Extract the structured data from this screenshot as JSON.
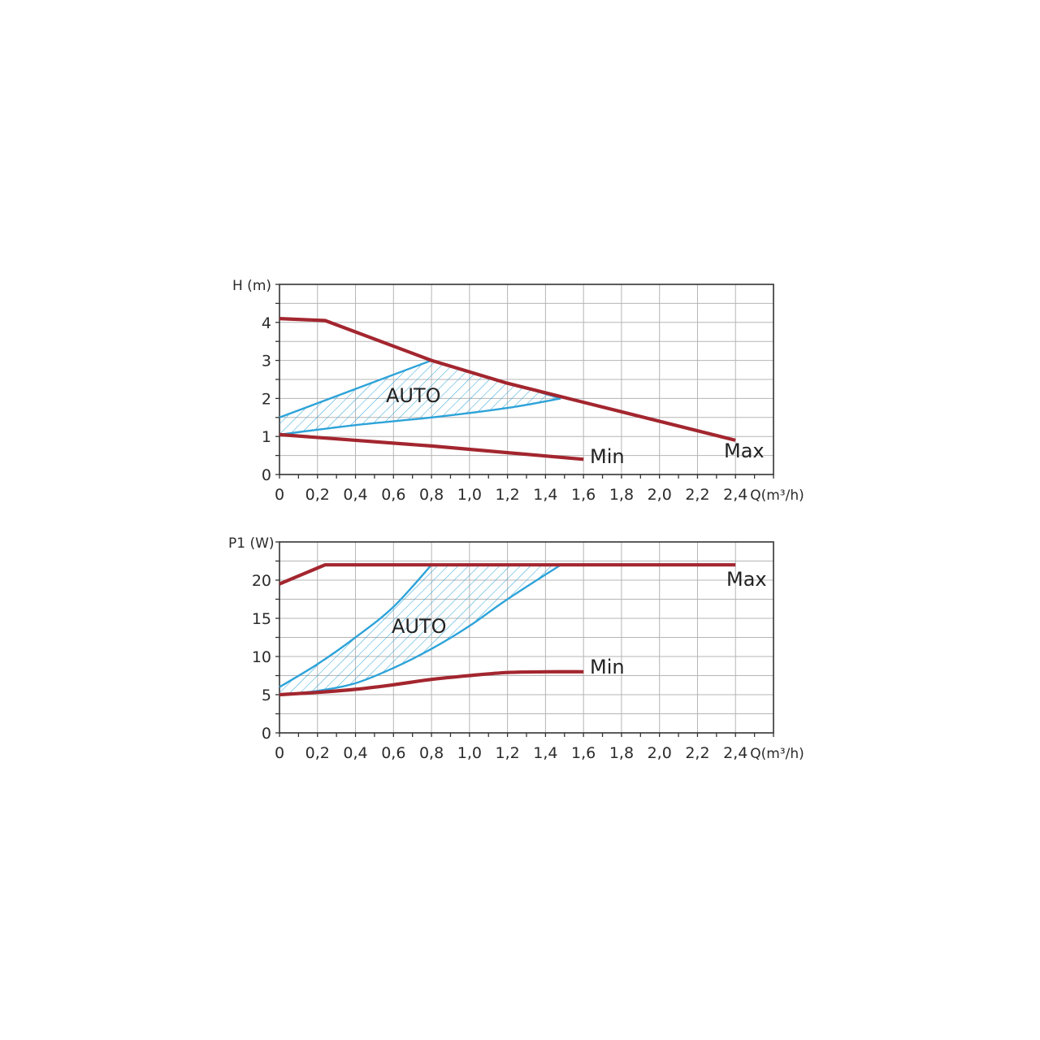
{
  "colors": {
    "max_min_curves": "#a3262f",
    "auto_boundaries": "#2ea3d9",
    "grid": "#b5b5b5",
    "frame": "#333333"
  },
  "chart_data": [
    {
      "type": "line",
      "ylabel": "H (m)",
      "xlabel": "Q(m³/h)",
      "xlim": [
        0,
        2.6
      ],
      "ylim": [
        0,
        5
      ],
      "xticks": [
        "0",
        "0,2",
        "0,4",
        "0,6",
        "0,8",
        "1,0",
        "1,2",
        "1,4",
        "1,6",
        "1,8",
        "2,0",
        "2,2",
        "2,4"
      ],
      "yticks": [
        "0",
        "1",
        "2",
        "3",
        "4"
      ],
      "grid": true,
      "series": [
        {
          "name": "Max",
          "x": [
            0,
            0.24,
            0.8,
            1.2,
            1.6,
            2.4
          ],
          "y": [
            4.1,
            4.05,
            3.0,
            2.4,
            1.9,
            0.9
          ]
        },
        {
          "name": "Min",
          "x": [
            0,
            0.8,
            1.6
          ],
          "y": [
            1.05,
            0.75,
            0.4
          ]
        }
      ],
      "auto_region": {
        "label": "AUTO",
        "upper": {
          "x": [
            0,
            0.8,
            1.48
          ],
          "y": [
            1.5,
            3.0,
            2.0
          ]
        },
        "lower": {
          "x": [
            0,
            0.4,
            0.8,
            1.2,
            1.48
          ],
          "y": [
            1.05,
            1.3,
            1.5,
            1.75,
            2.0
          ]
        }
      }
    },
    {
      "type": "line",
      "ylabel": "P1 (W)",
      "xlabel": "Q(m³/h)",
      "xlim": [
        0,
        2.6
      ],
      "ylim": [
        0,
        25
      ],
      "xticks": [
        "0",
        "0,2",
        "0,4",
        "0,6",
        "0,8",
        "1,0",
        "1,2",
        "1,4",
        "1,6",
        "1,8",
        "2,0",
        "2,2",
        "2,4"
      ],
      "yticks": [
        "0",
        "5",
        "10",
        "15",
        "20"
      ],
      "grid": true,
      "series": [
        {
          "name": "Max",
          "x": [
            0,
            0.24,
            2.4
          ],
          "y": [
            19.5,
            22.0,
            22.0
          ]
        },
        {
          "name": "Min",
          "x": [
            0,
            0.2,
            0.4,
            0.6,
            0.8,
            1.0,
            1.2,
            1.4,
            1.6
          ],
          "y": [
            5.0,
            5.3,
            5.7,
            6.3,
            7.0,
            7.5,
            7.9,
            8.0,
            8.0
          ]
        }
      ],
      "auto_region": {
        "label": "AUTO",
        "upper": {
          "x": [
            0,
            0.2,
            0.4,
            0.6,
            0.8
          ],
          "y": [
            6.0,
            9.0,
            12.5,
            16.5,
            22.0
          ]
        },
        "lower": {
          "x": [
            0,
            0.2,
            0.4,
            0.6,
            0.8,
            1.0,
            1.2,
            1.48
          ],
          "y": [
            5.0,
            5.5,
            6.5,
            8.5,
            11.0,
            14.0,
            17.5,
            22.0
          ]
        }
      }
    }
  ]
}
